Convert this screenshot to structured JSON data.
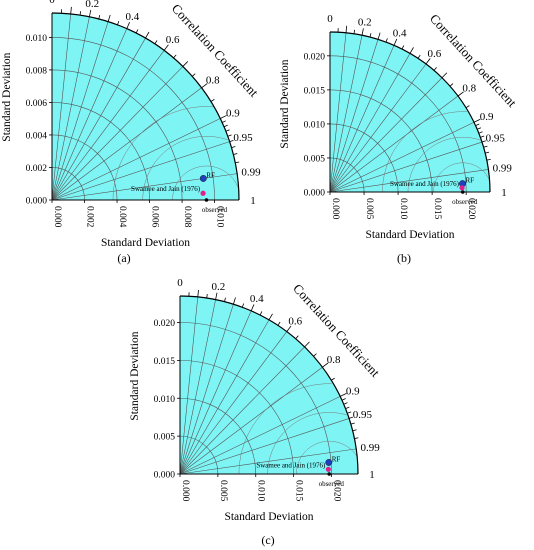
{
  "chart_data": [
    {
      "type": "taylor",
      "panel": "(a)",
      "xlabel": "Standard Deviation",
      "ylabel": "Standard Deviation",
      "corr_label": "Correlation Coefficient",
      "sd_max": 0.0115,
      "sd_ticks": [
        "0.000",
        "0.002",
        "0.004",
        "0.006",
        "0.008",
        "0.010"
      ],
      "sd_tick_values": [
        0,
        0.002,
        0.004,
        0.006,
        0.008,
        0.01
      ],
      "corr_ticks": [
        "0",
        "0.2",
        "0.4",
        "0.6",
        "0.8",
        "0.9",
        "0.95",
        "0.99",
        "1"
      ],
      "corr_tick_values": [
        0,
        0.2,
        0.4,
        0.6,
        0.8,
        0.9,
        0.95,
        0.99,
        1
      ],
      "observed_label": "observed",
      "observed_sd": 0.0095,
      "points": [
        {
          "name": "RF",
          "sd": 0.0094,
          "corr": 0.99
        },
        {
          "name": "Swamee and Jain (1976)",
          "sd": 0.0093,
          "corr": 0.999
        }
      ]
    },
    {
      "type": "taylor",
      "panel": "(b)",
      "xlabel": "Standard Deviation",
      "ylabel": "Standard Deviation",
      "corr_label": "Correlation Coefficient",
      "sd_max": 0.0235,
      "sd_ticks": [
        "0.000",
        "0.005",
        "0.010",
        "0.015",
        "0.020"
      ],
      "sd_tick_values": [
        0,
        0.005,
        0.01,
        0.015,
        0.02
      ],
      "corr_ticks": [
        "0",
        "0.2",
        "0.4",
        "0.6",
        "0.8",
        "0.9",
        "0.95",
        "0.99",
        "1"
      ],
      "corr_tick_values": [
        0,
        0.2,
        0.4,
        0.6,
        0.8,
        0.9,
        0.95,
        0.99,
        1
      ],
      "observed_label": "observed",
      "observed_sd": 0.0195,
      "points": [
        {
          "name": "RF",
          "sd": 0.0195,
          "corr": 0.998
        },
        {
          "name": "Swamee and Jain (1976)",
          "sd": 0.0194,
          "corr": 0.9995
        }
      ]
    },
    {
      "type": "taylor",
      "panel": "(c)",
      "xlabel": "Standard Deviation",
      "ylabel": "Standard Deviation",
      "corr_label": "Correlation Coefficient",
      "sd_max": 0.0235,
      "sd_ticks": [
        "0.000",
        "0.005",
        "0.010",
        "0.015",
        "0.020"
      ],
      "sd_tick_values": [
        0,
        0.005,
        0.01,
        0.015,
        0.02
      ],
      "corr_ticks": [
        "0",
        "0.2",
        "0.4",
        "0.6",
        "0.8",
        "0.9",
        "0.95",
        "0.99",
        "1"
      ],
      "corr_tick_values": [
        0,
        0.2,
        0.4,
        0.6,
        0.8,
        0.9,
        0.95,
        0.99,
        1
      ],
      "observed_label": "observed",
      "observed_sd": 0.0197,
      "points": [
        {
          "name": "RF",
          "sd": 0.0197,
          "corr": 0.997
        },
        {
          "name": "Swamee and Jain (1976)",
          "sd": 0.0196,
          "corr": 0.9995
        }
      ]
    }
  ],
  "colors": {
    "fill": "#7ff4f4",
    "grid": "#555555",
    "rf_point": "#1f3fbf",
    "sj_point": "#e0208c"
  }
}
